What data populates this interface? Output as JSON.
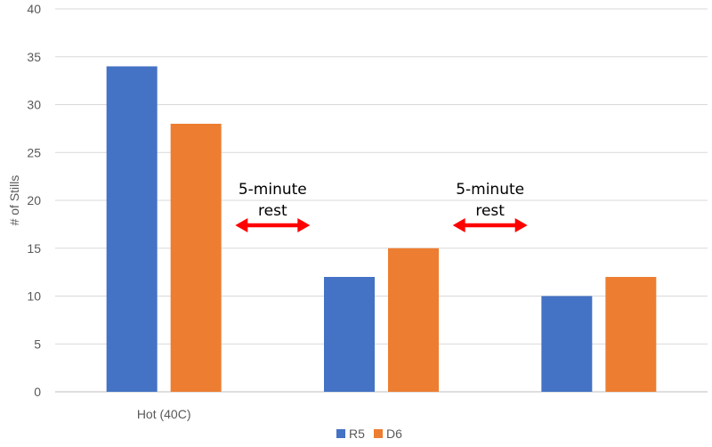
{
  "chart_data": {
    "type": "bar",
    "title": "",
    "xlabel": "",
    "ylabel": "# of Stills",
    "ylim": [
      0,
      40
    ],
    "yticks": [
      0,
      5,
      10,
      15,
      20,
      25,
      30,
      35,
      40
    ],
    "grid": true,
    "legend_position": "bottom",
    "categories": [
      "Hot (40C)",
      "",
      ""
    ],
    "series": [
      {
        "name": "R5",
        "color": "#4472C4",
        "values": [
          34,
          12,
          10
        ]
      },
      {
        "name": "D6",
        "color": "#ED7D31",
        "values": [
          28,
          15,
          12
        ]
      }
    ],
    "annotations": [
      {
        "lines": [
          "5-minute",
          "rest"
        ],
        "between": [
          0,
          1
        ],
        "arrow_color": "#FF0000"
      },
      {
        "lines": [
          "5-minute",
          "rest"
        ],
        "between": [
          1,
          2
        ],
        "arrow_color": "#FF0000"
      }
    ]
  }
}
